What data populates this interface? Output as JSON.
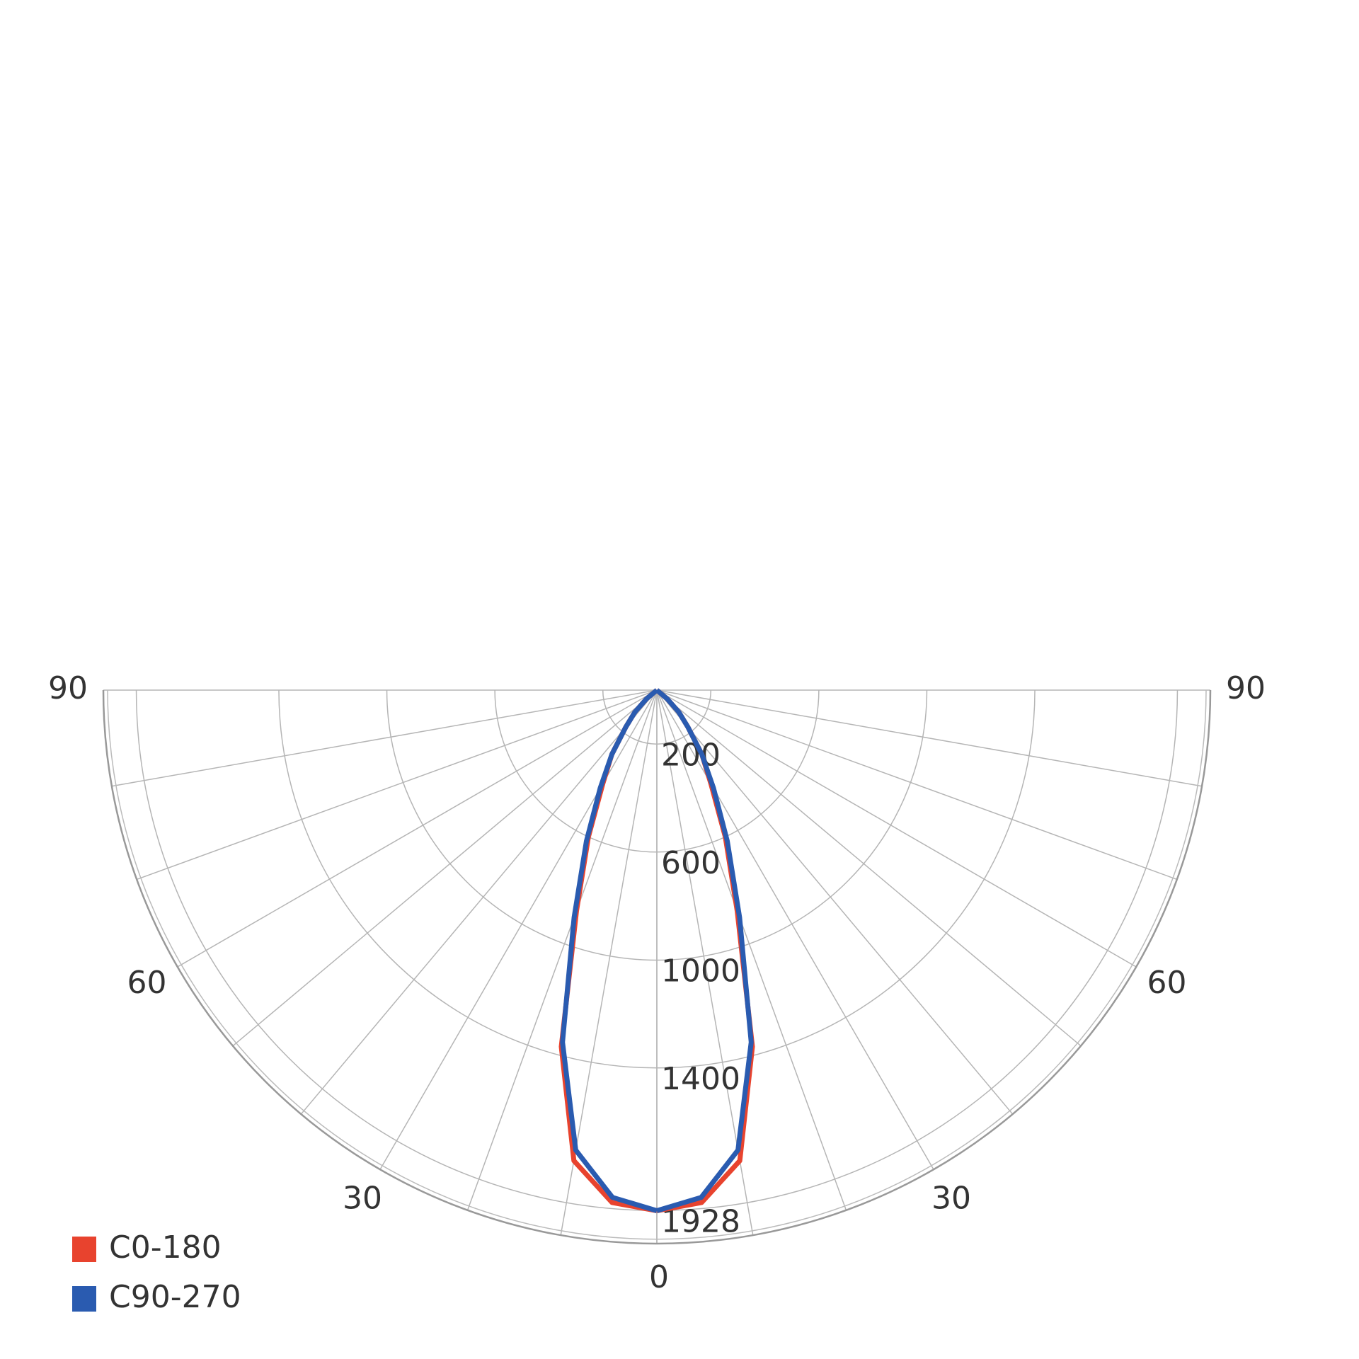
{
  "chart_data": {
    "type": "polar",
    "theta": [
      0,
      5,
      10,
      15,
      20,
      25,
      30,
      35,
      40,
      45,
      50,
      55,
      60,
      65,
      70,
      75,
      80,
      85,
      90
    ],
    "series": [
      {
        "name": "C0-180",
        "color": "#e8432e",
        "values": [
          1928,
          1905,
          1770,
          1367,
          870,
          600,
          400,
          290,
          180,
          115,
          50,
          0,
          0,
          0,
          0,
          0,
          0,
          0,
          0
        ]
      },
      {
        "name": "C90-270",
        "color": "#2a5bb0",
        "values": [
          1928,
          1886,
          1730,
          1350,
          896,
          617,
          420,
          290,
          180,
          115,
          50,
          0,
          0,
          0,
          0,
          0,
          0,
          0,
          0
        ]
      }
    ],
    "rlim": [
      0,
      2050
    ],
    "rticks": [
      200,
      600,
      1000,
      1400,
      1928
    ],
    "thetaticks": [
      0,
      30,
      60,
      90
    ],
    "grid": true,
    "legend": "bottom-left"
  }
}
